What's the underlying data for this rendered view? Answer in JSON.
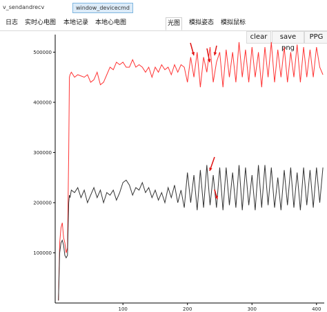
{
  "window_tabs": {
    "send_recv": "v_sendandrecv",
    "device_cmd": "window_devicecmd"
  },
  "tabs": [
    "日志",
    "实时心电图",
    "本地记录",
    "本地心电图",
    "光图",
    "模拟姿态",
    "模拟鼠标"
  ],
  "active_tab": "光图",
  "toolbar": {
    "clear": "clear",
    "save_png": "save png",
    "ppg": "PPG"
  },
  "colors": {
    "red_series": "#ff3333",
    "black_series": "#333333",
    "arrow": "#e01010",
    "axis": "#000000"
  },
  "chart_data": {
    "type": "line",
    "xlim": [
      -5,
      412
    ],
    "ylim": [
      0,
      535000
    ],
    "xticks": [
      100,
      200,
      300,
      400
    ],
    "yticks": [
      100000,
      200000,
      300000,
      400000,
      500000
    ],
    "ytick_labels": [
      "100000",
      "200000",
      "300000",
      "400000",
      "500000"
    ],
    "xtick_labels": [
      "100",
      "200",
      "300",
      "400"
    ],
    "grid": false,
    "series": [
      {
        "color": "red",
        "x": [
          0,
          2,
          4,
          6,
          8,
          10,
          12,
          14,
          16,
          17,
          18,
          20,
          25,
          30,
          40,
          45,
          50,
          55,
          60,
          65,
          70,
          75,
          80,
          85,
          90,
          95,
          100,
          105,
          110,
          115,
          120,
          125,
          130,
          135,
          140,
          145,
          150,
          155,
          160,
          165,
          170,
          175,
          180,
          185,
          190,
          195,
          200,
          205,
          210,
          215,
          220,
          225,
          230,
          235,
          240,
          245,
          250,
          255,
          260,
          265,
          270,
          275,
          280,
          285,
          290,
          295,
          300,
          305,
          310,
          315,
          320,
          325,
          330,
          335,
          340,
          345,
          350,
          355,
          360,
          365,
          370,
          375,
          380,
          385,
          390,
          395,
          400,
          405,
          410
        ],
        "y": [
          5000,
          120000,
          150000,
          160000,
          130000,
          120000,
          100000,
          110000,
          300000,
          450000,
          455000,
          460000,
          450000,
          455000,
          450000,
          455000,
          440000,
          445000,
          460000,
          435000,
          440000,
          455000,
          470000,
          465000,
          480000,
          475000,
          480000,
          470000,
          470000,
          485000,
          470000,
          475000,
          470000,
          460000,
          470000,
          450000,
          470000,
          460000,
          475000,
          465000,
          470000,
          455000,
          475000,
          460000,
          475000,
          470000,
          440000,
          490000,
          450000,
          500000,
          430000,
          490000,
          460000,
          510000,
          440000,
          480000,
          500000,
          430000,
          505000,
          450000,
          500000,
          440000,
          520000,
          450000,
          505000,
          440000,
          510000,
          450000,
          500000,
          430000,
          510000,
          450000,
          520000,
          440000,
          505000,
          450000,
          510000,
          440000,
          500000,
          450000,
          515000,
          440000,
          510000,
          450000,
          505000,
          450000,
          510000,
          470000,
          455000
        ]
      },
      {
        "color": "black",
        "x": [
          0,
          2,
          4,
          6,
          8,
          10,
          12,
          14,
          16,
          17,
          18,
          20,
          25,
          30,
          35,
          40,
          45,
          50,
          55,
          60,
          65,
          70,
          75,
          80,
          85,
          90,
          95,
          100,
          105,
          110,
          115,
          120,
          125,
          130,
          135,
          140,
          145,
          150,
          155,
          160,
          165,
          170,
          175,
          180,
          185,
          190,
          195,
          200,
          205,
          210,
          215,
          220,
          225,
          230,
          235,
          240,
          245,
          250,
          255,
          260,
          265,
          270,
          275,
          280,
          285,
          290,
          295,
          300,
          305,
          310,
          315,
          320,
          325,
          330,
          335,
          340,
          345,
          350,
          355,
          360,
          365,
          370,
          375,
          380,
          385,
          390,
          395,
          400,
          405,
          410
        ],
        "y": [
          5000,
          100000,
          120000,
          125000,
          115000,
          95000,
          90000,
          95000,
          200000,
          215000,
          210000,
          225000,
          220000,
          230000,
          210000,
          225000,
          200000,
          215000,
          230000,
          210000,
          225000,
          200000,
          220000,
          215000,
          225000,
          205000,
          220000,
          240000,
          245000,
          235000,
          215000,
          230000,
          225000,
          240000,
          220000,
          230000,
          210000,
          225000,
          205000,
          220000,
          200000,
          230000,
          210000,
          235000,
          200000,
          225000,
          190000,
          260000,
          200000,
          255000,
          185000,
          265000,
          190000,
          275000,
          195000,
          255000,
          190000,
          270000,
          185000,
          270000,
          195000,
          260000,
          190000,
          275000,
          185000,
          270000,
          195000,
          255000,
          185000,
          275000,
          190000,
          275000,
          195000,
          270000,
          190000,
          250000,
          185000,
          265000,
          195000,
          270000,
          190000,
          260000,
          185000,
          270000,
          195000,
          265000,
          190000,
          270000,
          200000,
          270000
        ]
      }
    ]
  }
}
